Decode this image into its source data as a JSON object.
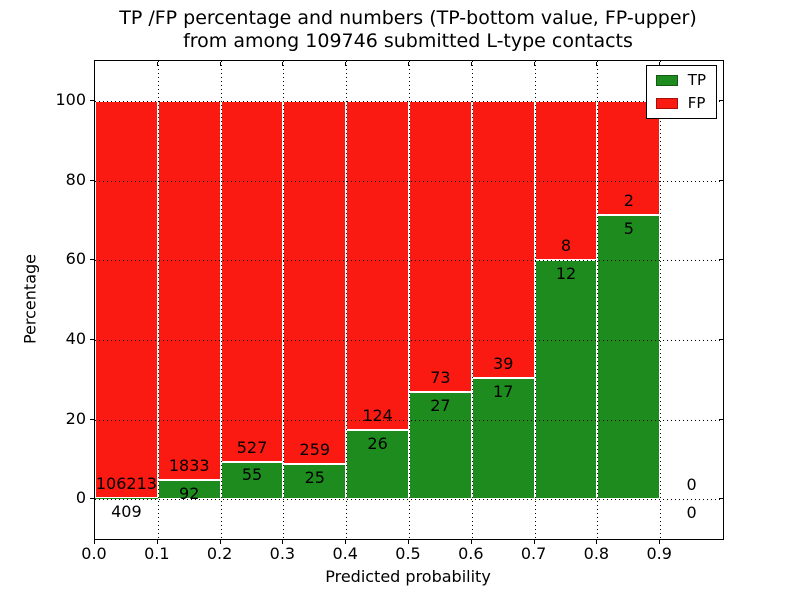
{
  "chart_data": {
    "type": "bar",
    "stacked": true,
    "title_line1": "TP /FP percentage and numbers (TP-bottom value, FP-upper)",
    "title_line2": "from among 109746 submitted L-type contacts",
    "xlabel": "Predicted probability",
    "ylabel": "Percentage",
    "xlim": [
      0.0,
      1.0
    ],
    "ylim": [
      -10,
      110
    ],
    "grid": "dotted-black-above-bars",
    "legend_position": "upper-right",
    "x_tick_values": [
      0.0,
      0.1,
      0.2,
      0.3,
      0.4,
      0.5,
      0.6,
      0.7,
      0.8,
      0.9
    ],
    "x_tick_labels": [
      "0.0",
      "0.1",
      "0.2",
      "0.3",
      "0.4",
      "0.5",
      "0.6",
      "0.7",
      "0.8",
      "0.9"
    ],
    "y_tick_values": [
      0,
      20,
      40,
      60,
      80,
      100
    ],
    "y_tick_labels": [
      "0",
      "20",
      "40",
      "60",
      "80",
      "100"
    ],
    "categories": [
      "0.0-0.1",
      "0.1-0.2",
      "0.2-0.3",
      "0.3-0.4",
      "0.4-0.5",
      "0.5-0.6",
      "0.6-0.7",
      "0.7-0.8",
      "0.8-0.9",
      "0.9-1.0"
    ],
    "bin_edges": [
      0.0,
      0.1,
      0.2,
      0.3,
      0.4,
      0.5,
      0.6,
      0.7,
      0.8,
      0.9,
      1.0
    ],
    "series": [
      {
        "name": "TP",
        "counts": [
          409,
          92,
          55,
          25,
          26,
          27,
          17,
          12,
          5,
          0
        ],
        "percent": [
          0.38,
          4.78,
          9.45,
          8.8,
          17.33,
          27.0,
          30.36,
          60.0,
          71.43,
          0
        ]
      },
      {
        "name": "FP",
        "counts": [
          106213,
          1833,
          527,
          259,
          124,
          73,
          39,
          8,
          2,
          0
        ],
        "percent": [
          99.62,
          95.22,
          90.55,
          91.2,
          82.67,
          73.0,
          69.64,
          40.0,
          28.57,
          0
        ]
      }
    ],
    "legend": {
      "entries": [
        {
          "label": "TP",
          "color": "#1e8b1e"
        },
        {
          "label": "FP",
          "color": "#fb1a12"
        }
      ]
    },
    "colors": {
      "tp": "#1e8b1e",
      "fp": "#fb1a12",
      "grid": "#000000",
      "frame": "#000000",
      "background": "#ffffff",
      "bar_edge": "#ffffff"
    }
  }
}
